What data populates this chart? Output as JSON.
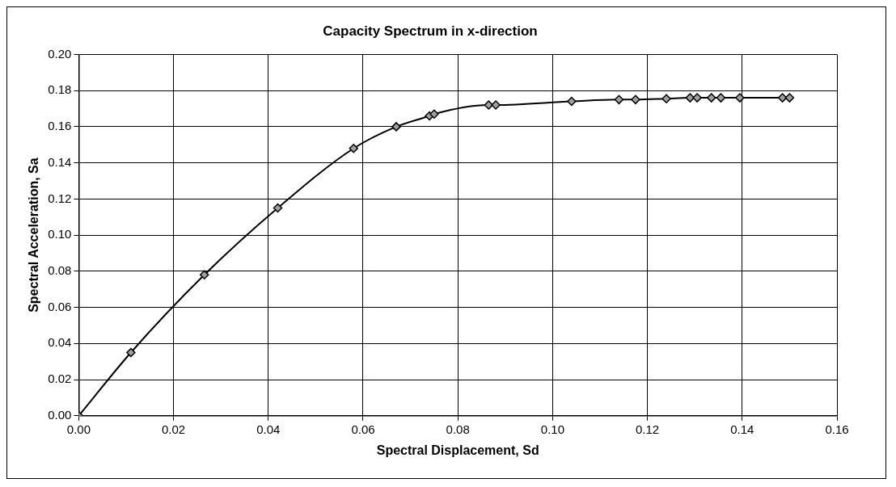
{
  "chart_data": {
    "type": "line",
    "title": "Capacity Spectrum in x-direction",
    "xlabel": "Spectral Displacement, Sd",
    "ylabel": "Spectral Acceleration, Sa",
    "x": [
      0,
      0.011,
      0.0265,
      0.042,
      0.058,
      0.067,
      0.074,
      0.075,
      0.0865,
      0.088,
      0.104,
      0.114,
      0.1175,
      0.124,
      0.129,
      0.1305,
      0.1335,
      0.1355,
      0.1395,
      0.1485,
      0.15
    ],
    "series": [
      {
        "color": "#000000",
        "values": [
          0,
          0.035,
          0.078,
          0.115,
          0.148,
          0.16,
          0.166,
          0.167,
          0.172,
          0.172,
          0.174,
          0.175,
          0.175,
          0.1755,
          0.176,
          0.176,
          0.176,
          0.176,
          0.176,
          0.176,
          0.176
        ]
      }
    ],
    "xlim": [
      0,
      0.16
    ],
    "xticks": [
      {
        "value": 0,
        "label": "0.00"
      },
      {
        "value": 0.02,
        "label": "0.02"
      },
      {
        "value": 0.04,
        "label": "0.04"
      },
      {
        "value": 0.06,
        "label": "0.06"
      },
      {
        "value": 0.08,
        "label": "0.08"
      },
      {
        "value": 0.1,
        "label": "0.10"
      },
      {
        "value": 0.12,
        "label": "0.12"
      },
      {
        "value": 0.14,
        "label": "0.14"
      },
      {
        "value": 0.16,
        "label": "0.16"
      }
    ],
    "ylim": [
      0,
      0.2
    ],
    "yticks": [
      {
        "value": 0,
        "label": "0.00"
      },
      {
        "value": 0.02,
        "label": "0.02"
      },
      {
        "value": 0.04,
        "label": "0.04"
      },
      {
        "value": 0.06,
        "label": "0.06"
      },
      {
        "value": 0.08,
        "label": "0.08"
      },
      {
        "value": 0.1,
        "label": "0.10"
      },
      {
        "value": 0.12,
        "label": "0.12"
      },
      {
        "value": 0.14,
        "label": "0.14"
      },
      {
        "value": 0.16,
        "label": "0.16"
      },
      {
        "value": 0.18,
        "label": "0.18"
      },
      {
        "value": 0.2,
        "label": "0.20"
      }
    ],
    "grid": true,
    "legend": false,
    "marker": "diamond",
    "line_style": "solid"
  }
}
